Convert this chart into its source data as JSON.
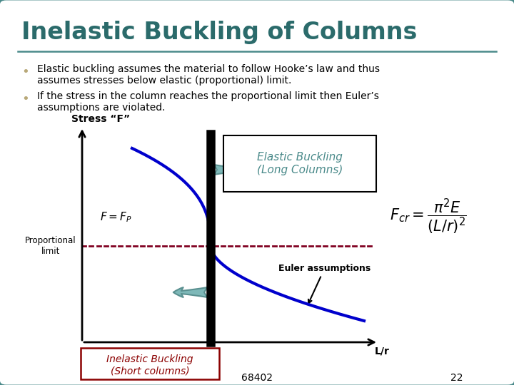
{
  "title": "Inelastic Buckling of Columns",
  "title_color": "#2B6B6B",
  "title_fontsize": 24,
  "bg_color": "#FFFFFF",
  "border_color": "#4A8A8A",
  "bullet1_line1": "Elastic buckling assumes the material to follow Hooke’s law and thus",
  "bullet1_line2": "assumes stresses below elastic (proportional) limit.",
  "bullet2_line1": "If the stress in the column reaches the proportional limit then Euler’s",
  "bullet2_line2": "assumptions are violated.",
  "stress_label": "Stress “F”",
  "proportional_label": "Proportional\nlimit",
  "euler_label": "Euler assumptions",
  "elastic_box_text": "Elastic Buckling\n(Long Columns)",
  "inelastic_box_text": "Inelastic Buckling\n(Short columns)",
  "lr_label": "L/r",
  "fp_text": "$F = F_P$",
  "slide_num": "22",
  "slide_code": "68402",
  "curve_color": "#0000CC",
  "dashed_color": "#800020",
  "arrow_fill": "#7EB8B8",
  "arrow_edge": "#5A9090",
  "divider_color": "#4A8A8A",
  "inelastic_text_color": "#8B0000",
  "elastic_text_color": "#4A8A8A",
  "bullet_dot_color": "#B8A878"
}
